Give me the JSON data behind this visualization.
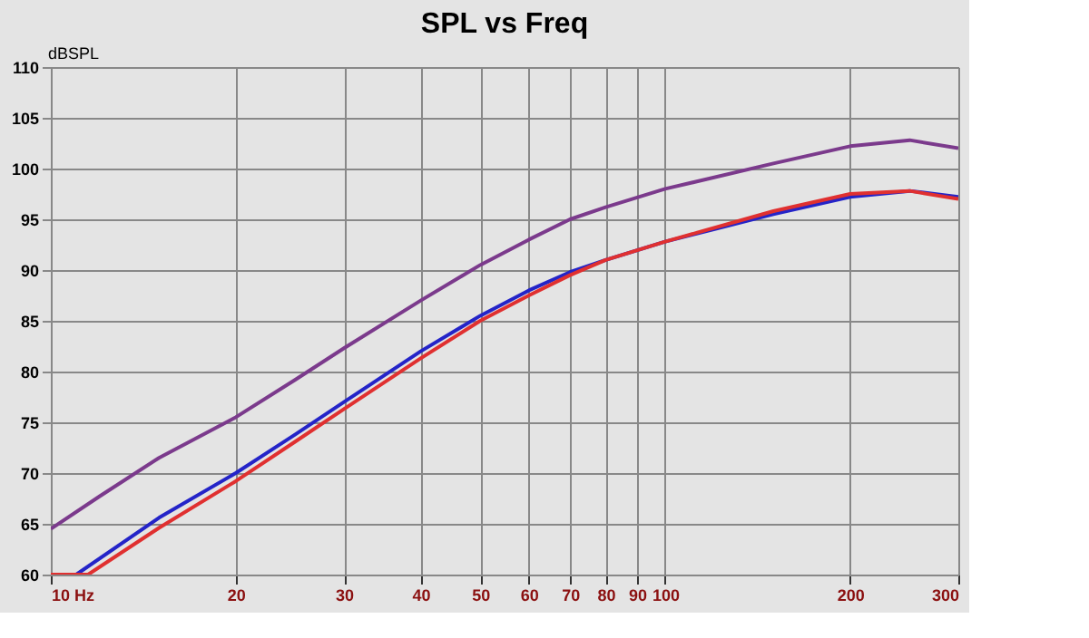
{
  "chart_data": {
    "type": "line",
    "title": "SPL vs Freq",
    "ylabel": "dBSPL",
    "log": "x",
    "grid": true,
    "legend": false,
    "marker": "none",
    "line_style": "solid",
    "xlim": [
      10,
      300
    ],
    "xticks": [
      {
        "value": 10,
        "label": "10 Hz"
      },
      20,
      30,
      40,
      50,
      60,
      70,
      80,
      90,
      100,
      200,
      300
    ],
    "ylim": [
      60,
      110
    ],
    "yticks": [
      60,
      65,
      70,
      75,
      80,
      85,
      90,
      95,
      100,
      105,
      110
    ],
    "series": [
      {
        "color": "#7b3a8c",
        "x": [
          10,
          12,
          15,
          20,
          25,
          30,
          40,
          50,
          60,
          70,
          80,
          100,
          150,
          200,
          250,
          300
        ],
        "values": [
          64.5,
          67.7,
          71.5,
          75.5,
          79.2,
          82.3,
          87,
          90.5,
          93,
          95,
          96.2,
          98,
          100.5,
          102.2,
          102.8,
          102
        ]
      },
      {
        "color": "#2424c8",
        "x": [
          10,
          11,
          15,
          20,
          25,
          30,
          40,
          50,
          60,
          70,
          80,
          100,
          150,
          200,
          250,
          300
        ],
        "values": [
          60,
          60,
          65.6,
          70,
          73.8,
          77,
          82,
          85.5,
          88,
          89.8,
          91,
          92.8,
          95.5,
          97.2,
          97.8,
          97.2
        ]
      },
      {
        "color": "#e03030",
        "x": [
          10,
          11.5,
          15,
          20,
          25,
          30,
          40,
          50,
          60,
          70,
          80,
          100,
          150,
          200,
          250,
          300
        ],
        "values": [
          60,
          60,
          64.6,
          69.2,
          73.1,
          76.3,
          81.3,
          85,
          87.5,
          89.5,
          91,
          92.8,
          95.8,
          97.5,
          97.8,
          97
        ]
      }
    ]
  }
}
